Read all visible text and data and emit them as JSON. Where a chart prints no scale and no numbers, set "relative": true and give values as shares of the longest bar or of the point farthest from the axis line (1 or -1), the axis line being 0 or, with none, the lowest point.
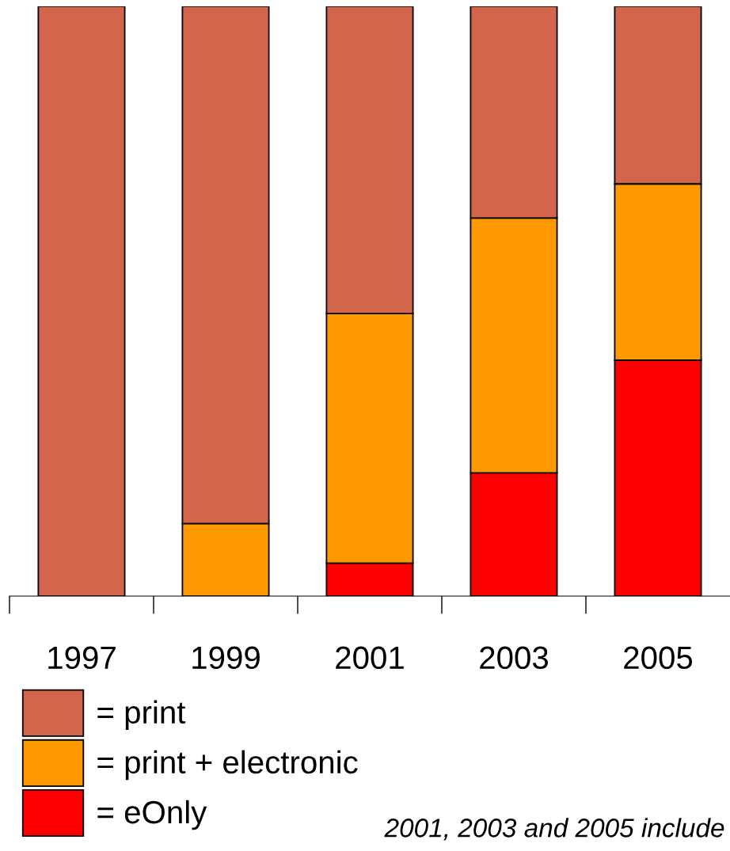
{
  "chart_data": {
    "type": "bar",
    "stacked": true,
    "relative": true,
    "categories": [
      "1997",
      "1999",
      "2001",
      "2003",
      "2005"
    ],
    "series": [
      {
        "name": "= eOnly",
        "color": "#ff0000",
        "values": [
          0,
          0,
          0.056,
          0.209,
          0.4
        ]
      },
      {
        "name": "= print + electronic",
        "color": "#ff9900",
        "values": [
          0,
          0.123,
          0.423,
          0.432,
          0.299
        ]
      },
      {
        "name": "= print",
        "color": "#d2654c",
        "values": [
          1.0,
          0.877,
          0.521,
          0.359,
          0.301
        ]
      }
    ],
    "legend": "bottom left",
    "annotations": [
      "2001, 2003 and 2005 include"
    ]
  }
}
